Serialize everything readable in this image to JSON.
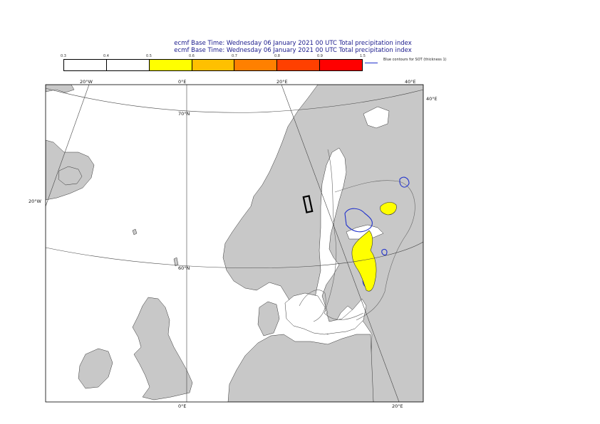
{
  "header": {
    "title_line1": "ecmf  Base Time: Wednesday 06 January 2021 00 UTC Total precipitation index",
    "title_line2": "ecmf  Base Time: Wednesday 06 January 2021 00 UTC Total precipitation index"
  },
  "legend": {
    "ticks": [
      "0.3",
      "0.4",
      "0.5",
      "0.6",
      "0.7",
      "0.8",
      "0.9",
      "1.5"
    ],
    "colors": [
      "#ffffff",
      "#ffffff",
      "#ffff00",
      "#ffc000",
      "#ff8000",
      "#ff4000",
      "#ff0000"
    ],
    "blue_contour_label": "Blue contours for SOT (thickness 1)",
    "blue_contour_color": "#2233cc"
  },
  "map": {
    "land_color": "#c8c8c8",
    "sea_color": "#ffffff",
    "labels": {
      "lon_20w_top": "20°W",
      "lon_0_top": "0°E",
      "lon_20e_top": "20°E",
      "lon_40e_top": "40°E",
      "lon_40e_right": "40°E",
      "lat_70n": "70°N",
      "lat_60n": "60°N",
      "lon_20w_left": "20°W",
      "lon_0_bottom": "0°E",
      "lon_20e_bottom": "20°E"
    }
  }
}
